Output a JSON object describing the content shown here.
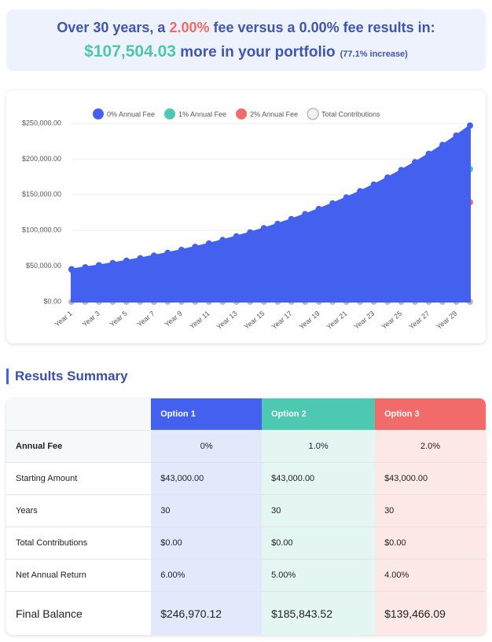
{
  "header": {
    "line1": [
      "Over 30 years, a ",
      "2.00%",
      " fee versus a ",
      "0.00%",
      " fee results in:"
    ],
    "line2": [
      "$107,504.03",
      " more in your portfolio",
      "(77.1% increase)"
    ]
  },
  "chart_data": {
    "type": "area",
    "categories": [
      "Year 1",
      null,
      "Year 3",
      null,
      "Year 5",
      null,
      "Year 7",
      null,
      "Year 9",
      null,
      "Year 11",
      null,
      "Year 13",
      null,
      "Year 15",
      null,
      "Year 17",
      null,
      "Year 19",
      null,
      "Year 21",
      null,
      "Year 23",
      null,
      "Year 25",
      null,
      "Year 27",
      null,
      "Year 29",
      null
    ],
    "series": [
      {
        "name": "0% Annual Fee",
        "color": "#4361ee",
        "values": [
          45580,
          48315,
          51214,
          54287,
          57544,
          60996,
          64656,
          68535,
          72647,
          77006,
          81627,
          86524,
          91716,
          97219,
          103052,
          109235,
          115789,
          122736,
          130100,
          137906,
          146181,
          154951,
          164249,
          174103,
          184550,
          195623,
          207360,
          219801,
          232989,
          246970
        ]
      },
      {
        "name": "1% Annual Fee",
        "color": "#4cc9b0",
        "values": [
          45150,
          47408,
          49778,
          52267,
          54880,
          57624,
          60505,
          63531,
          66707,
          70043,
          73545,
          77222,
          81083,
          85137,
          89394,
          93864,
          98557,
          103485,
          108659,
          114092,
          119797,
          125787,
          132076,
          138680,
          145614,
          152895,
          160539,
          168566,
          176995,
          185844
        ]
      },
      {
        "name": "2% Annual Fee",
        "color": "#f26b6b",
        "values": [
          44720,
          46509,
          48369,
          50304,
          52316,
          54409,
          56585,
          58849,
          61203,
          63651,
          66197,
          68845,
          71599,
          74463,
          77441,
          80539,
          83760,
          87111,
          90595,
          94219,
          97988,
          101908,
          105984,
          110223,
          114632,
          119218,
          123986,
          128946,
          134104,
          139466
        ]
      },
      {
        "name": "Total Contributions",
        "color": "#bbbbbb",
        "values": [
          0,
          0,
          0,
          0,
          0,
          0,
          0,
          0,
          0,
          0,
          0,
          0,
          0,
          0,
          0,
          0,
          0,
          0,
          0,
          0,
          0,
          0,
          0,
          0,
          0,
          0,
          0,
          0,
          0,
          0
        ]
      }
    ],
    "ylim": [
      0,
      250000
    ],
    "yticks": [
      {
        "value": 0,
        "label": "$0.00"
      },
      {
        "value": 50000,
        "label": "$50,000.00"
      },
      {
        "value": 100000,
        "label": "$100,000.00"
      },
      {
        "value": 150000,
        "label": "$150,000.00"
      },
      {
        "value": 200000,
        "label": "$200,000.00"
      },
      {
        "value": 250000,
        "label": "$250,000.00"
      }
    ],
    "grid": true,
    "legend": "top"
  },
  "summary_title": "Results Summary",
  "table": {
    "columns": [
      "Option 1",
      "Option 2",
      "Option 3"
    ],
    "rows": [
      [
        "Annual Fee",
        "0%",
        "1.0%",
        "2.0%"
      ],
      [
        "Starting Amount",
        "$43,000.00",
        "$43,000.00",
        "$43,000.00"
      ],
      [
        "Years",
        "30",
        "30",
        "30"
      ],
      [
        "Total Contributions",
        "$0.00",
        "$0.00",
        "$0.00"
      ],
      [
        "Net Annual Return",
        "6.00%",
        "5.00%",
        "4.00%"
      ],
      [
        "Final Balance",
        "$246,970.12",
        "$185,843.52",
        "$139,466.09"
      ]
    ]
  }
}
